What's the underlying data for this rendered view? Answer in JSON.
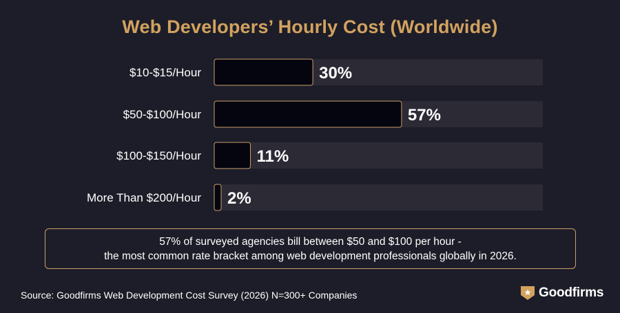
{
  "colors": {
    "background": "#1d1d29",
    "accent": "#d2a25f",
    "track": "#2b2a35",
    "bar": "#05050f",
    "bar_border": "#c9a06a"
  },
  "chart_data": {
    "type": "bar",
    "orientation": "horizontal",
    "title": "Web Developers’ Hourly Cost (Worldwide)",
    "categories": [
      "$10-$15/Hour",
      "$50-$100/Hour",
      "$100-$150/Hour",
      "More Than $200/Hour"
    ],
    "values": [
      30,
      57,
      11,
      2
    ],
    "value_labels": [
      "30%",
      "57%",
      "11%",
      "2%"
    ],
    "unit": "%",
    "xlim": [
      0,
      100
    ],
    "grid": false,
    "legend": "none"
  },
  "note": {
    "line1": "57% of surveyed agencies bill between $50 and $100 per hour -",
    "line2": "the most common rate bracket among web development professionals globally in 2026."
  },
  "footer": {
    "source": "Source: Goodfirms Web Development Cost Survey (2026) N=300+ Companies",
    "brand": "Goodfirms",
    "brand_icon": "shield-star-icon"
  }
}
